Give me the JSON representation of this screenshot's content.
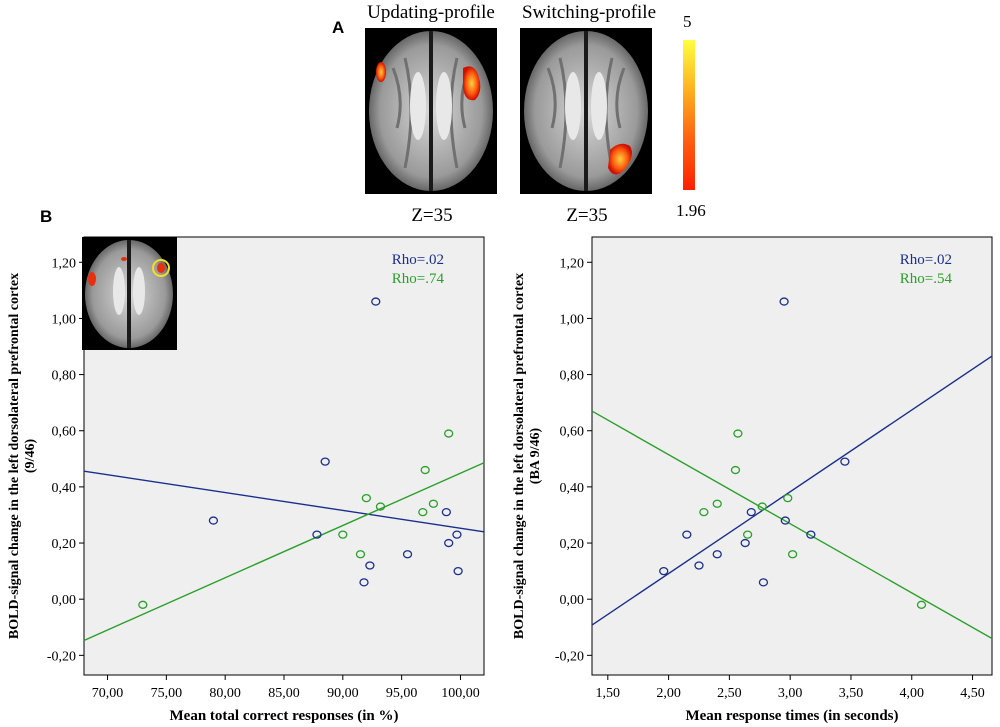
{
  "panel_a": {
    "label": "A",
    "brains": [
      {
        "title": "Updating-profile",
        "slice": "Z=35"
      },
      {
        "title": "Switching-profile",
        "slice": "Z=35"
      }
    ],
    "colorbar": {
      "max": "5",
      "min": "1.96",
      "colors": [
        "#ffff40",
        "#ff2000"
      ]
    }
  },
  "panel_b": {
    "label": "B"
  },
  "colors": {
    "blue": "#1a2f8c",
    "green": "#2aa02a",
    "plot_bg": "#efefef"
  },
  "chart_data": [
    {
      "type": "scatter",
      "xlabel": "Mean total correct responses (in %)",
      "ylabel": "BOLD-signal change in the left dorsolateral prefrontal cortex",
      "ylabel2": "(9/46)",
      "xlim": [
        68,
        102
      ],
      "ylim": [
        -0.27,
        1.29
      ],
      "xticks": [
        70,
        75,
        80,
        85,
        90,
        95,
        100
      ],
      "xtick_labels": [
        "70,00",
        "75,00",
        "80,00",
        "85,00",
        "90,00",
        "95,00",
        "100,00"
      ],
      "yticks": [
        -0.2,
        0,
        0.2,
        0.4,
        0.6,
        0.8,
        1.0,
        1.2
      ],
      "ytick_labels": [
        "-0,20",
        "0,00",
        "0,20",
        "0,40",
        "0,60",
        "0,80",
        "1,00",
        "1,20"
      ],
      "annotations": [
        {
          "text": "Rho=.02",
          "series": 0
        },
        {
          "text": "Rho=.74",
          "series": 1
        }
      ],
      "series": [
        {
          "name": "Updating-profile",
          "color": "#1a2f8c",
          "x": [
            79.0,
            88.5,
            92.8,
            87.8,
            92.3,
            91.8,
            95.5,
            98.8,
            99.7,
            99.0,
            99.8
          ],
          "y": [
            0.28,
            0.49,
            1.06,
            0.23,
            0.12,
            0.06,
            0.16,
            0.31,
            0.23,
            0.2,
            0.1
          ],
          "fit": [
            [
              68,
              0.456
            ],
            [
              102,
              0.24
            ]
          ]
        },
        {
          "name": "Switching-profile",
          "color": "#2aa02a",
          "x": [
            73.0,
            90.0,
            91.5,
            92.0,
            93.2,
            96.8,
            97.0,
            97.7,
            99.0
          ],
          "y": [
            -0.02,
            0.23,
            0.16,
            0.36,
            0.33,
            0.31,
            0.46,
            0.34,
            0.59
          ],
          "fit": [
            [
              68,
              -0.147
            ],
            [
              102,
              0.486
            ]
          ]
        }
      ]
    },
    {
      "type": "scatter",
      "xlabel": "Mean response times (in seconds)",
      "ylabel": "BOLD-signal change in the left dorsolateral prefrontal cortex",
      "ylabel2": "(BA 9/46)",
      "xlim": [
        1.37,
        4.66
      ],
      "ylim": [
        -0.27,
        1.29
      ],
      "xticks": [
        1.5,
        2.0,
        2.5,
        3.0,
        3.5,
        4.0,
        4.5
      ],
      "xtick_labels": [
        "1,50",
        "2,00",
        "2,50",
        "3,00",
        "3,50",
        "4,00",
        "4,50"
      ],
      "yticks": [
        -0.2,
        0,
        0.2,
        0.4,
        0.6,
        0.8,
        1.0,
        1.2
      ],
      "ytick_labels": [
        "-0,20",
        "0,00",
        "0,20",
        "0,40",
        "0,60",
        "0,80",
        "1,00",
        "1,20"
      ],
      "annotations": [
        {
          "text": "Rho=.02",
          "series": 0
        },
        {
          "text": "Rho=.54",
          "series": 1
        }
      ],
      "series": [
        {
          "name": "Updating-profile",
          "color": "#1a2f8c",
          "x": [
            1.96,
            2.15,
            2.25,
            2.4,
            2.63,
            2.68,
            2.78,
            2.95,
            2.96,
            3.17,
            3.45
          ],
          "y": [
            0.1,
            0.23,
            0.12,
            0.16,
            0.2,
            0.31,
            0.06,
            1.06,
            0.28,
            0.23,
            0.49
          ],
          "fit": [
            [
              1.37,
              -0.092
            ],
            [
              4.66,
              0.866
            ]
          ]
        },
        {
          "name": "Switching-profile",
          "color": "#2aa02a",
          "x": [
            2.29,
            2.4,
            2.55,
            2.57,
            2.65,
            2.77,
            2.98,
            3.02,
            4.08
          ],
          "y": [
            0.31,
            0.34,
            0.46,
            0.59,
            0.23,
            0.33,
            0.36,
            0.16,
            -0.02
          ],
          "fit": [
            [
              1.37,
              0.67
            ],
            [
              4.66,
              -0.14
            ]
          ]
        }
      ]
    }
  ]
}
